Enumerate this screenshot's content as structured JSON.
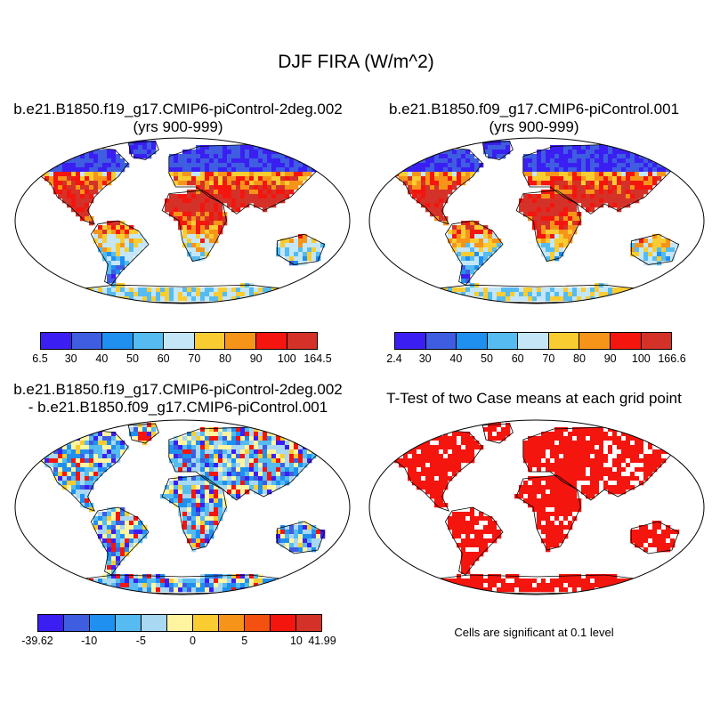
{
  "title": "DJF FIRA (W/m^2)",
  "panels": [
    {
      "title_line1": "b.e21.B1850.f19_g17.CMIP6-piControl-2deg.002",
      "title_line2": "(yrs 900-999)",
      "colorbar": {
        "colors": [
          "#3b1ff2",
          "#3f5de0",
          "#1f90f0",
          "#55bbf0",
          "#c4e6f6",
          "#f9cc32",
          "#f6941a",
          "#f4150f",
          "#d43228"
        ],
        "labels": [
          "6.5",
          "30",
          "40",
          "50",
          "60",
          "70",
          "80",
          "90",
          "100",
          "164.5"
        ]
      }
    },
    {
      "title_line1": "b.e21.B1850.f09_g17.CMIP6-piControl.001",
      "title_line2": "(yrs 900-999)",
      "colorbar": {
        "colors": [
          "#3b1ff2",
          "#3f5de0",
          "#1f90f0",
          "#55bbf0",
          "#c4e6f6",
          "#f9cc32",
          "#f6941a",
          "#f4150f",
          "#d43228"
        ],
        "labels": [
          "2.4",
          "30",
          "40",
          "50",
          "60",
          "70",
          "80",
          "90",
          "100",
          "166.6"
        ]
      }
    },
    {
      "title_line1": "b.e21.B1850.f19_g17.CMIP6-piControl-2deg.002",
      "title_line2": "- b.e21.B1850.f09_g17.CMIP6-piControl.001",
      "colorbar": {
        "colors": [
          "#3b1ff2",
          "#3f5de0",
          "#1f90f0",
          "#55bbf0",
          "#a8d8f2",
          "#fff5a0",
          "#f9cc32",
          "#f6941a",
          "#f4500f",
          "#f4150f",
          "#d43228"
        ],
        "labels": [
          "-39.62",
          "",
          "-10",
          "",
          "-5",
          "",
          "0",
          "",
          "5",
          "",
          "10",
          "41.99"
        ],
        "shown_labels": [
          "-39.62",
          "-10",
          "-5",
          "0",
          "5",
          "10",
          "41.99"
        ]
      }
    },
    {
      "title_line1": "T-Test of two Case means at each grid point",
      "note": "Cells are significant at 0.1 level"
    }
  ]
}
